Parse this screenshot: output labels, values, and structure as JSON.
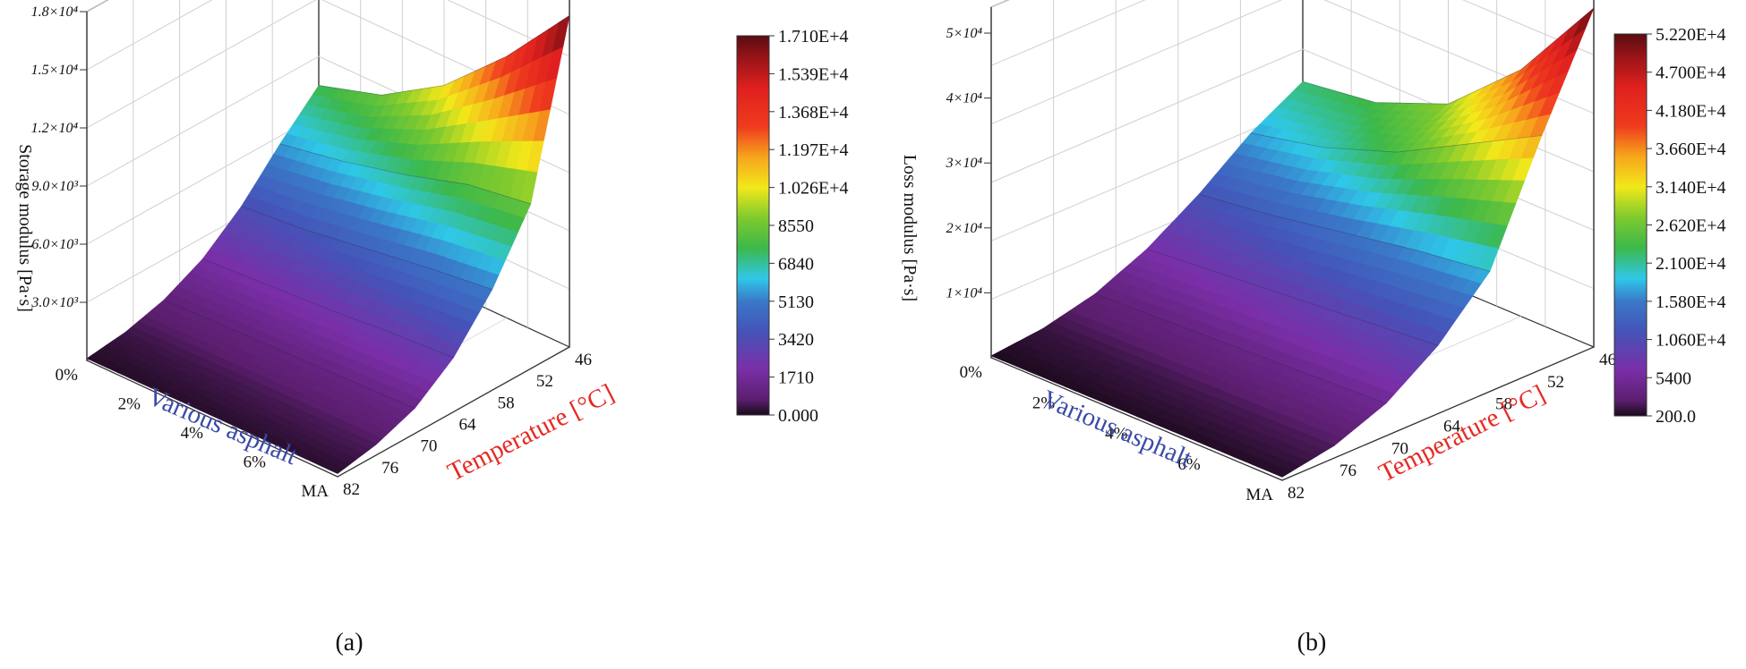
{
  "chart_data": [
    {
      "type": "surface3d",
      "panel_label": "(a)",
      "zlabel": "Storage modulus [Pa·s]",
      "xlabel": "Various asphalt",
      "ylabel": "Temperature [°C]",
      "x_categories": [
        "0%",
        "2%",
        "4%",
        "6%",
        "MA"
      ],
      "y_ticks": [
        "46",
        "52",
        "58",
        "64",
        "70",
        "76",
        "82"
      ],
      "z_ticks": [
        "3.0×10³",
        "6.0×10³",
        "9.0×10³",
        "1.2×10⁴",
        "1.5×10⁴",
        "1.8×10⁴"
      ],
      "zlim": [
        0,
        18000
      ],
      "colorbar_ticks": [
        "1.710E+4",
        "1.539E+4",
        "1.368E+4",
        "1.197E+4",
        "1.026E+4",
        "8550",
        "6840",
        "5130",
        "3420",
        "1710",
        "0.000"
      ],
      "colorbar_range": [
        0,
        17100
      ],
      "surface_values": [
        [
          100,
          120,
          140,
          150,
          160
        ],
        [
          350,
          400,
          450,
          500,
          550
        ],
        [
          900,
          1000,
          1100,
          1200,
          1300
        ],
        [
          1900,
          2100,
          2300,
          2600,
          2800
        ],
        [
          3500,
          3800,
          4300,
          4800,
          5200
        ],
        [
          5600,
          6200,
          7000,
          8000,
          8500
        ],
        [
          7500,
          8500,
          10500,
          13500,
          17100
        ]
      ],
      "surface_temperatures": [
        "82",
        "76",
        "70",
        "64",
        "58",
        "52",
        "46"
      ]
    },
    {
      "type": "surface3d",
      "panel_label": "(b)",
      "zlabel": "Loss modulus [Pa·s]",
      "xlabel": "Various asphalt",
      "ylabel": "Temperature [°C]",
      "x_categories": [
        "0%",
        "2%",
        "4%",
        "6%",
        "MA"
      ],
      "y_ticks": [
        "46",
        "52",
        "58",
        "64",
        "70",
        "76",
        "82"
      ],
      "z_ticks": [
        "1×10⁴",
        "2×10⁴",
        "3×10⁴",
        "4×10⁴",
        "5×10⁴"
      ],
      "zlim": [
        0,
        54000
      ],
      "colorbar_ticks": [
        "5.220E+4",
        "4.700E+4",
        "4.180E+4",
        "3.660E+4",
        "3.140E+4",
        "2.620E+4",
        "2.100E+4",
        "1.580E+4",
        "1.060E+4",
        "5400",
        "200.0"
      ],
      "colorbar_range": [
        200,
        52200
      ],
      "surface_values": [
        [
          300,
          350,
          400,
          450,
          500
        ],
        [
          1100,
          1300,
          1500,
          1700,
          1900
        ],
        [
          3000,
          3500,
          4000,
          4500,
          5000
        ],
        [
          6500,
          7500,
          8500,
          9500,
          10500
        ],
        [
          11500,
          13000,
          15000,
          17000,
          18500
        ],
        [
          17500,
          20000,
          24000,
          30000,
          36000
        ],
        [
          22000,
          23500,
          28000,
          38000,
          52200
        ]
      ],
      "surface_temperatures": [
        "82",
        "76",
        "70",
        "64",
        "58",
        "52",
        "46"
      ]
    }
  ]
}
